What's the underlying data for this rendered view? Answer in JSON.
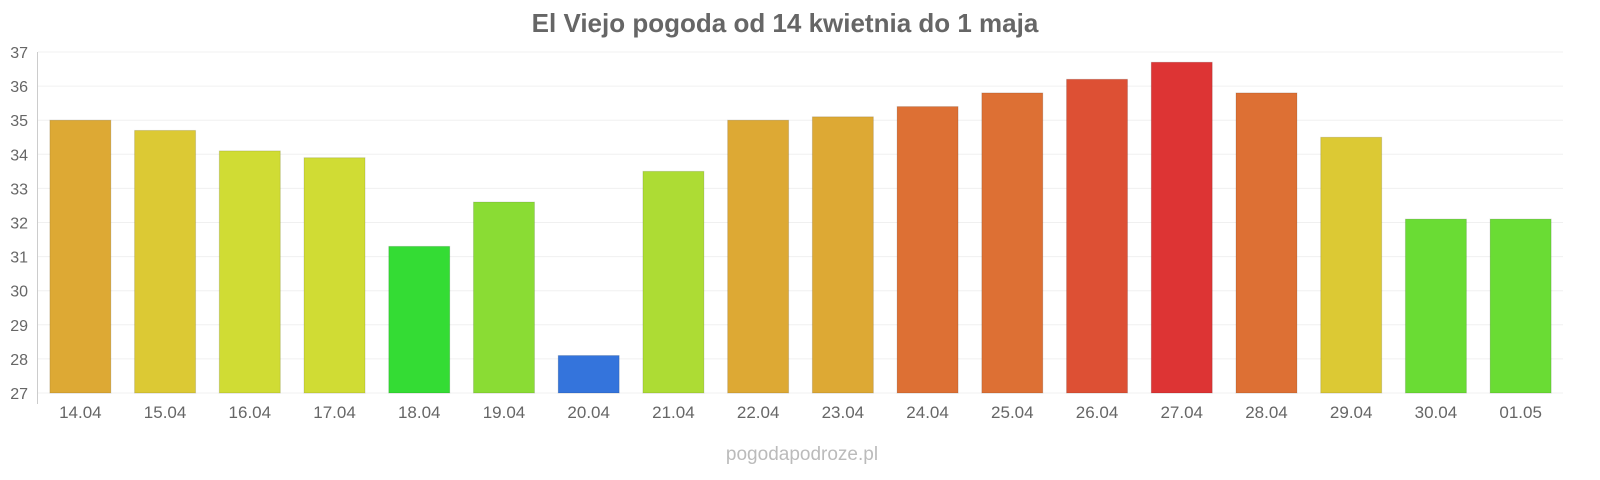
{
  "chart_data": {
    "type": "bar",
    "title": "El Viejo pogoda od 14 kwietnia do 1 maja",
    "xlabel": "",
    "ylabel": "",
    "ylim": [
      27,
      37
    ],
    "yticks": [
      27,
      28,
      29,
      30,
      31,
      32,
      33,
      34,
      35,
      36,
      37
    ],
    "grid": true,
    "categories": [
      "14.04",
      "15.04",
      "16.04",
      "17.04",
      "18.04",
      "19.04",
      "20.04",
      "21.04",
      "22.04",
      "23.04",
      "24.04",
      "25.04",
      "26.04",
      "27.04",
      "28.04",
      "29.04",
      "30.04",
      "01.05"
    ],
    "values": [
      35.0,
      34.7,
      34.1,
      33.9,
      31.3,
      32.6,
      28.1,
      33.5,
      35.0,
      35.1,
      35.4,
      35.8,
      36.2,
      36.7,
      35.8,
      34.5,
      32.1,
      32.1
    ],
    "colors": [
      "#dda934",
      "#dcc934",
      "#d0dc34",
      "#d0dc34",
      "#34dc34",
      "#8adc34",
      "#3474dc",
      "#addc34",
      "#dda934",
      "#dda934",
      "#dd7034",
      "#dd7034",
      "#dd5034",
      "#dd3434",
      "#dd7034",
      "#dcc934",
      "#6adc34",
      "#6adc34"
    ],
    "credit": "pogodapodroze.pl"
  }
}
